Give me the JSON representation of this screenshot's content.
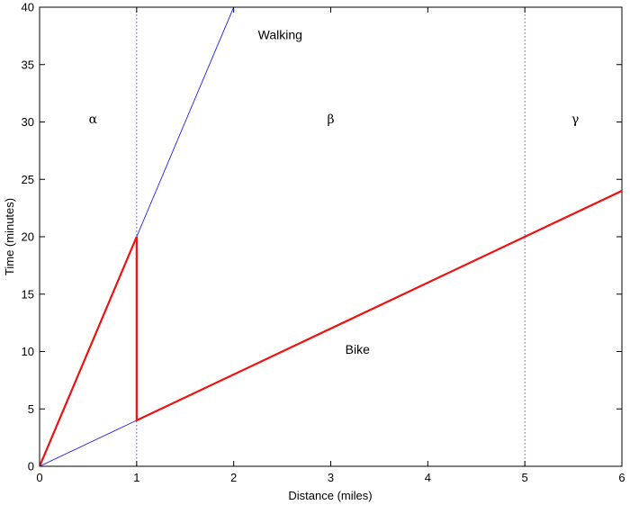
{
  "chart_data": {
    "type": "line",
    "xlabel": "Distance (miles)",
    "ylabel": "Time (minutes)",
    "xlim": [
      0,
      6
    ],
    "ylim": [
      0,
      40
    ],
    "xticks": [
      0,
      1,
      2,
      3,
      4,
      5,
      6
    ],
    "yticks": [
      0,
      5,
      10,
      15,
      20,
      25,
      30,
      35,
      40
    ],
    "grid": false,
    "series": [
      {
        "color": "#2020ee",
        "style": "thin",
        "points": [
          [
            0,
            0
          ],
          [
            2,
            40
          ]
        ]
      },
      {
        "color": "#2020ee",
        "style": "thin",
        "points": [
          [
            0,
            0
          ],
          [
            1,
            4
          ]
        ]
      },
      {
        "color": "#ee1111",
        "style": "thick",
        "points": [
          [
            0,
            0
          ],
          [
            1,
            20
          ],
          [
            1,
            4
          ],
          [
            6,
            24
          ]
        ]
      }
    ],
    "vlines": [
      {
        "x": 1,
        "color": "#5555dd",
        "style": "dotted"
      },
      {
        "x": 5,
        "color": "#5555dd",
        "style": "dotted"
      }
    ],
    "annotations": [
      {
        "text": "Walking",
        "x": 2.25,
        "y": 37.2,
        "kind": "label"
      },
      {
        "text": "Bike",
        "x": 3.15,
        "y": 9.8,
        "kind": "label"
      },
      {
        "text": "α",
        "x": 0.55,
        "y": 29.9,
        "kind": "greek"
      },
      {
        "text": "β",
        "x": 3.0,
        "y": 29.9,
        "kind": "greek"
      },
      {
        "text": "γ",
        "x": 5.52,
        "y": 29.9,
        "kind": "greek"
      }
    ]
  }
}
